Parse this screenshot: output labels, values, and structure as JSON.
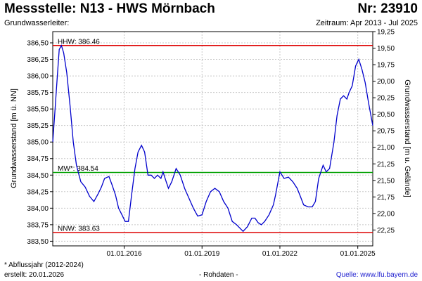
{
  "header": {
    "title": "Messstelle: N13 - HWS Mörnbach",
    "station_number": "Nr: 23910",
    "aquifer": "Grundwasserleiter:",
    "period": "Zeitraum: Apr 2013 - Jul 2025"
  },
  "footer": {
    "footnote": "* Abflussjahr (2012-2024)",
    "created": "erstellt:  20.01.2026",
    "raw_data": "- Rohdaten -",
    "source": "Quelle: www.lfu.bayern.de"
  },
  "colors": {
    "series": "#0000cc",
    "hhw": "#dd0000",
    "nnw": "#dd0000",
    "mw": "#00a000",
    "grid": "#c8c8c8"
  },
  "chart_data": {
    "type": "line",
    "ylabel": "Grundwasserstand [m ü. NN]",
    "y2label": "Grundwasserstand [m u. Gelände]",
    "xlim": [
      "2013-04-01",
      "2025-07-31"
    ],
    "ylim": [
      383.43,
      386.67
    ],
    "y2lim": [
      19.25,
      22.49
    ],
    "y_ticks": [
      "383,50",
      "383,75",
      "384,00",
      "384,25",
      "384,50",
      "384,75",
      "385,00",
      "385,25",
      "385,50",
      "385,75",
      "386,00",
      "386,25",
      "386,50"
    ],
    "y_tick_values": [
      383.5,
      383.75,
      384.0,
      384.25,
      384.5,
      384.75,
      385.0,
      385.25,
      385.5,
      385.75,
      386.0,
      386.25,
      386.5
    ],
    "y2_ticks": [
      "19,25",
      "19,50",
      "19,75",
      "20,00",
      "20,25",
      "20,50",
      "20,75",
      "21,00",
      "21,25",
      "21,50",
      "21,75",
      "22,00",
      "22,25"
    ],
    "y2_tick_values": [
      19.25,
      19.5,
      19.75,
      20.0,
      20.25,
      20.5,
      20.75,
      21.0,
      21.25,
      21.5,
      21.75,
      22.0,
      22.25
    ],
    "x_ticks": [
      "01.01.2016",
      "01.01.2019",
      "01.01.2022",
      "01.01.2025"
    ],
    "x_tick_values": [
      "2016-01-01",
      "2019-01-01",
      "2022-01-01",
      "2025-01-01"
    ],
    "grid": true,
    "reference_lines": [
      {
        "label": "HHW: 386.46",
        "value": 386.46
      },
      {
        "label": "MW*: 384.54",
        "value": 384.54
      },
      {
        "label": "NNW: 383.63",
        "value": 383.63
      }
    ],
    "series": [
      {
        "x": [
          "2013-04-01",
          "2013-05-01",
          "2013-06-01",
          "2013-07-01",
          "2013-08-01",
          "2013-09-01",
          "2013-10-15",
          "2013-12-01",
          "2014-01-15",
          "2014-03-01",
          "2014-05-01",
          "2014-07-01",
          "2014-09-01",
          "2014-11-01",
          "2015-01-01",
          "2015-02-15",
          "2015-04-01",
          "2015-06-01",
          "2015-07-15",
          "2015-09-01",
          "2015-10-15",
          "2015-12-01",
          "2016-01-15",
          "2016-03-01",
          "2016-04-15",
          "2016-06-01",
          "2016-07-15",
          "2016-09-01",
          "2016-10-15",
          "2016-12-01",
          "2017-01-15",
          "2017-03-01",
          "2017-04-15",
          "2017-06-01",
          "2017-07-01",
          "2017-08-15",
          "2017-09-15",
          "2017-11-01",
          "2018-01-01",
          "2018-03-01",
          "2018-05-01",
          "2018-07-01",
          "2018-09-01",
          "2018-11-01",
          "2019-01-01",
          "2019-03-01",
          "2019-05-01",
          "2019-07-01",
          "2019-09-01",
          "2019-11-01",
          "2020-01-01",
          "2020-03-01",
          "2020-05-01",
          "2020-06-15",
          "2020-08-01",
          "2020-10-01",
          "2020-12-01",
          "2021-01-15",
          "2021-03-01",
          "2021-04-15",
          "2021-06-01",
          "2021-08-01",
          "2021-10-01",
          "2021-11-01",
          "2022-01-01",
          "2022-03-01",
          "2022-05-01",
          "2022-07-01",
          "2022-09-01",
          "2022-10-15",
          "2022-12-01",
          "2023-02-01",
          "2023-04-01",
          "2023-05-15",
          "2023-07-01",
          "2023-09-01",
          "2023-10-15",
          "2023-12-01",
          "2024-02-01",
          "2024-03-15",
          "2024-05-01",
          "2024-06-15",
          "2024-08-01",
          "2024-09-01",
          "2024-10-15",
          "2024-12-01",
          "2025-01-15",
          "2025-03-01",
          "2025-04-15",
          "2025-06-01",
          "2025-07-31"
        ],
        "values": [
          385.0,
          385.45,
          385.95,
          386.4,
          386.46,
          386.35,
          386.05,
          385.55,
          385.0,
          384.65,
          384.4,
          384.32,
          384.18,
          384.1,
          384.22,
          384.32,
          384.45,
          384.48,
          384.35,
          384.2,
          384.0,
          383.9,
          383.8,
          383.8,
          384.2,
          384.6,
          384.85,
          384.95,
          384.85,
          384.5,
          384.5,
          384.45,
          384.5,
          384.45,
          384.55,
          384.4,
          384.3,
          384.4,
          384.6,
          384.5,
          384.3,
          384.15,
          384.0,
          383.88,
          383.9,
          384.1,
          384.25,
          384.3,
          384.25,
          384.1,
          384.0,
          383.8,
          383.75,
          383.7,
          383.65,
          383.72,
          383.85,
          383.85,
          383.78,
          383.75,
          383.8,
          383.9,
          384.05,
          384.2,
          384.55,
          384.45,
          384.47,
          384.4,
          384.3,
          384.18,
          384.05,
          384.02,
          384.02,
          384.1,
          384.45,
          384.65,
          384.55,
          384.6,
          385.0,
          385.4,
          385.65,
          385.7,
          385.65,
          385.75,
          385.85,
          386.15,
          386.25,
          386.1,
          385.9,
          385.6,
          385.25
        ]
      }
    ]
  }
}
